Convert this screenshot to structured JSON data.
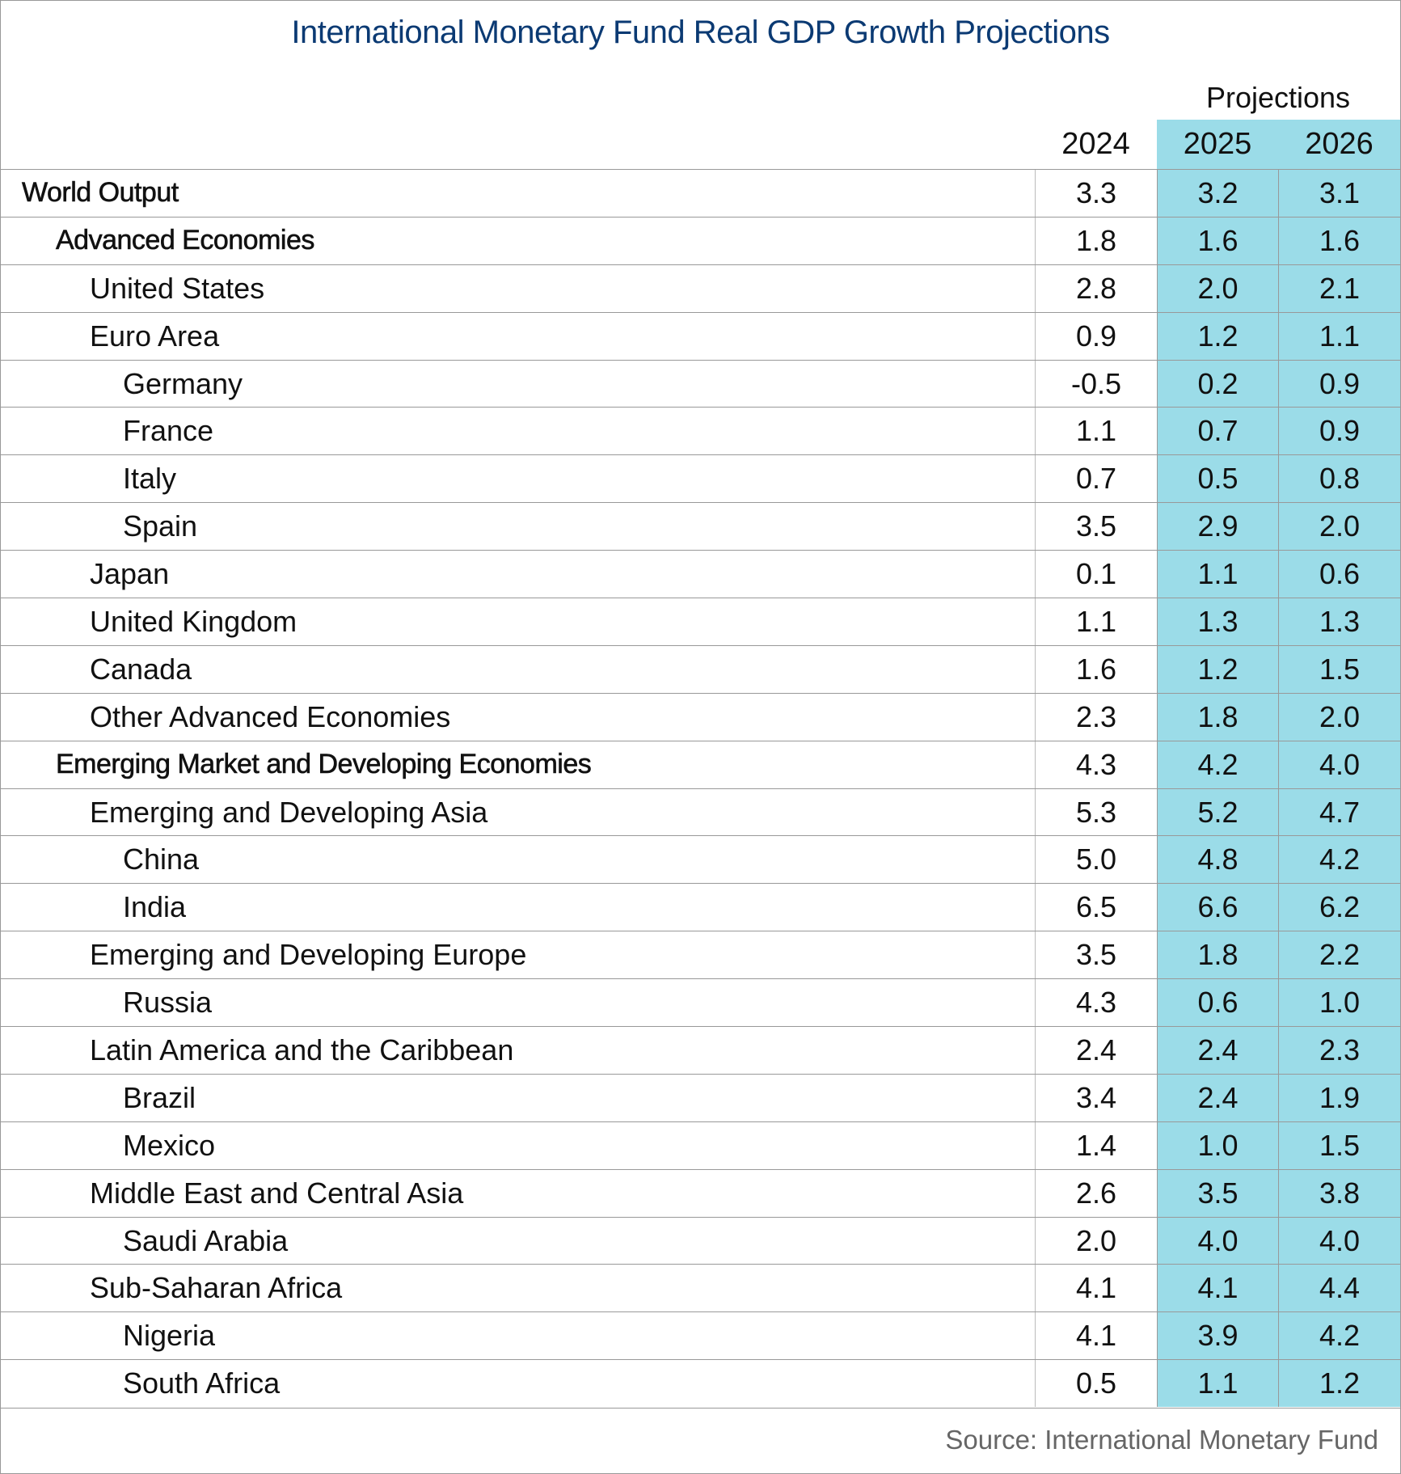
{
  "title": "International Monetary Fund Real GDP Growth Projections",
  "projections_label": "Projections",
  "columns": [
    "2024",
    "2025",
    "2026"
  ],
  "highlight_color": "#9BDCE8",
  "title_color": "#0B3A73",
  "rows": [
    {
      "label": "World Output",
      "level": 0,
      "values": [
        "3.3",
        "3.2",
        "3.1"
      ]
    },
    {
      "label": "Advanced Economies",
      "level": 1,
      "values": [
        "1.8",
        "1.6",
        "1.6"
      ]
    },
    {
      "label": "United States",
      "level": 2,
      "values": [
        "2.8",
        "2.0",
        "2.1"
      ]
    },
    {
      "label": "Euro Area",
      "level": 2,
      "values": [
        "0.9",
        "1.2",
        "1.1"
      ]
    },
    {
      "label": "Germany",
      "level": 3,
      "values": [
        "-0.5",
        "0.2",
        "0.9"
      ]
    },
    {
      "label": "France",
      "level": 3,
      "values": [
        "1.1",
        "0.7",
        "0.9"
      ]
    },
    {
      "label": "Italy",
      "level": 3,
      "values": [
        "0.7",
        "0.5",
        "0.8"
      ]
    },
    {
      "label": "Spain",
      "level": 3,
      "values": [
        "3.5",
        "2.9",
        "2.0"
      ]
    },
    {
      "label": "Japan",
      "level": 2,
      "values": [
        "0.1",
        "1.1",
        "0.6"
      ]
    },
    {
      "label": "United Kingdom",
      "level": 2,
      "values": [
        "1.1",
        "1.3",
        "1.3"
      ]
    },
    {
      "label": "Canada",
      "level": 2,
      "values": [
        "1.6",
        "1.2",
        "1.5"
      ]
    },
    {
      "label": "Other Advanced Economies",
      "level": 2,
      "values": [
        "2.3",
        "1.8",
        "2.0"
      ]
    },
    {
      "label": "Emerging Market and Developing Economies",
      "level": 1,
      "values": [
        "4.3",
        "4.2",
        "4.0"
      ]
    },
    {
      "label": "Emerging and Developing Asia",
      "level": 2,
      "values": [
        "5.3",
        "5.2",
        "4.7"
      ]
    },
    {
      "label": "China",
      "level": 3,
      "values": [
        "5.0",
        "4.8",
        "4.2"
      ]
    },
    {
      "label": "India",
      "level": 3,
      "values": [
        "6.5",
        "6.6",
        "6.2"
      ]
    },
    {
      "label": "Emerging and Developing Europe",
      "level": 2,
      "values": [
        "3.5",
        "1.8",
        "2.2"
      ]
    },
    {
      "label": "Russia",
      "level": 3,
      "values": [
        "4.3",
        "0.6",
        "1.0"
      ]
    },
    {
      "label": "Latin America and the Caribbean",
      "level": 2,
      "values": [
        "2.4",
        "2.4",
        "2.3"
      ]
    },
    {
      "label": "Brazil",
      "level": 3,
      "values": [
        "3.4",
        "2.4",
        "1.9"
      ]
    },
    {
      "label": "Mexico",
      "level": 3,
      "values": [
        "1.4",
        "1.0",
        "1.5"
      ]
    },
    {
      "label": "Middle East and Central Asia",
      "level": 2,
      "values": [
        "2.6",
        "3.5",
        "3.8"
      ]
    },
    {
      "label": "Saudi Arabia",
      "level": 3,
      "values": [
        "2.0",
        "4.0",
        "4.0"
      ]
    },
    {
      "label": "Sub-Saharan Africa",
      "level": 2,
      "values": [
        "4.1",
        "4.1",
        "4.4"
      ]
    },
    {
      "label": "Nigeria",
      "level": 3,
      "values": [
        "4.1",
        "3.9",
        "4.2"
      ]
    },
    {
      "label": "South Africa",
      "level": 3,
      "values": [
        "0.5",
        "1.1",
        "1.2"
      ]
    }
  ],
  "source": "Source: International Monetary Fund"
}
